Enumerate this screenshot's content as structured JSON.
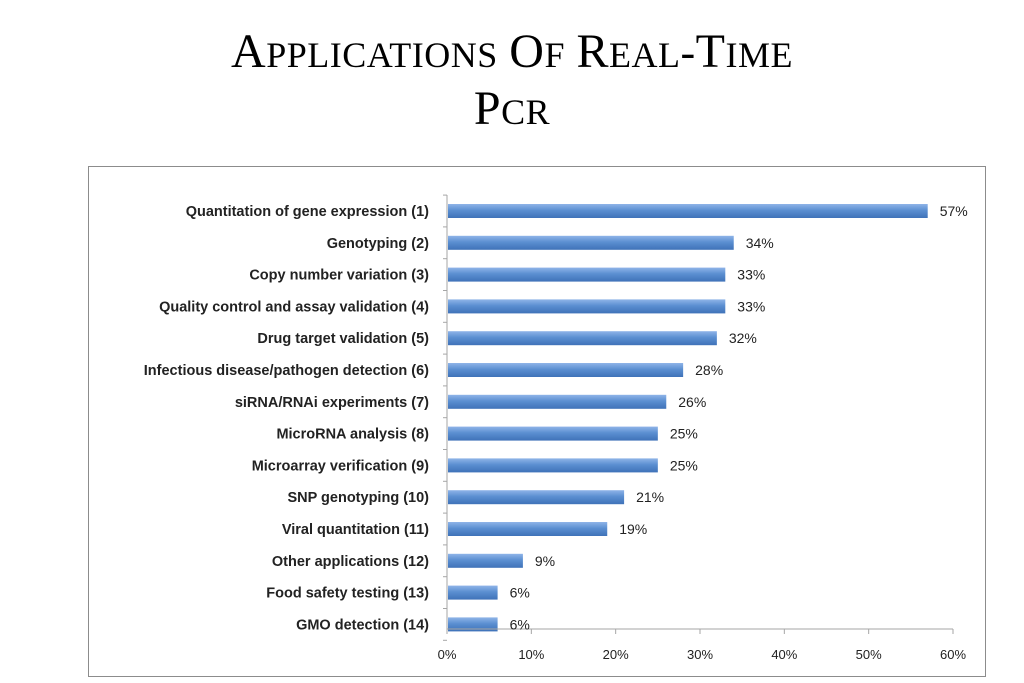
{
  "slide": {
    "title_line1": "APPLICATIONS OF REAL-TIME",
    "title_line2": "PCR"
  },
  "chart_data": {
    "type": "bar",
    "orientation": "horizontal",
    "categories": [
      "Quantitation of gene expression (1)",
      "Genotyping (2)",
      "Copy number variation (3)",
      "Quality control and assay validation (4)",
      "Drug target validation (5)",
      "Infectious disease/pathogen detection (6)",
      "siRNA/RNAi experiments (7)",
      "MicroRNA analysis (8)",
      "Microarray verification (9)",
      "SNP genotyping (10)",
      "Viral quantitation (11)",
      "Other applications (12)",
      "Food safety testing (13)",
      "GMO detection (14)"
    ],
    "values": [
      57,
      34,
      33,
      33,
      32,
      28,
      26,
      25,
      25,
      21,
      19,
      9,
      6,
      6
    ],
    "value_labels": [
      "57%",
      "34%",
      "33%",
      "33%",
      "32%",
      "28%",
      "26%",
      "25%",
      "25%",
      "21%",
      "19%",
      "9%",
      "6%",
      "6%"
    ],
    "x_ticks": [
      0,
      10,
      20,
      30,
      40,
      50,
      60
    ],
    "x_tick_labels": [
      "0%",
      "10%",
      "20%",
      "30%",
      "40%",
      "50%",
      "60%"
    ],
    "xlim": [
      0,
      60
    ],
    "grid": false,
    "legend": "none",
    "colors": {
      "bar": "#5b8fd1",
      "bar_light": "#8fb4e8",
      "bar_dark": "#3f72b8",
      "axis": "#a6a6a6",
      "frame": "#8c8c8c"
    }
  }
}
